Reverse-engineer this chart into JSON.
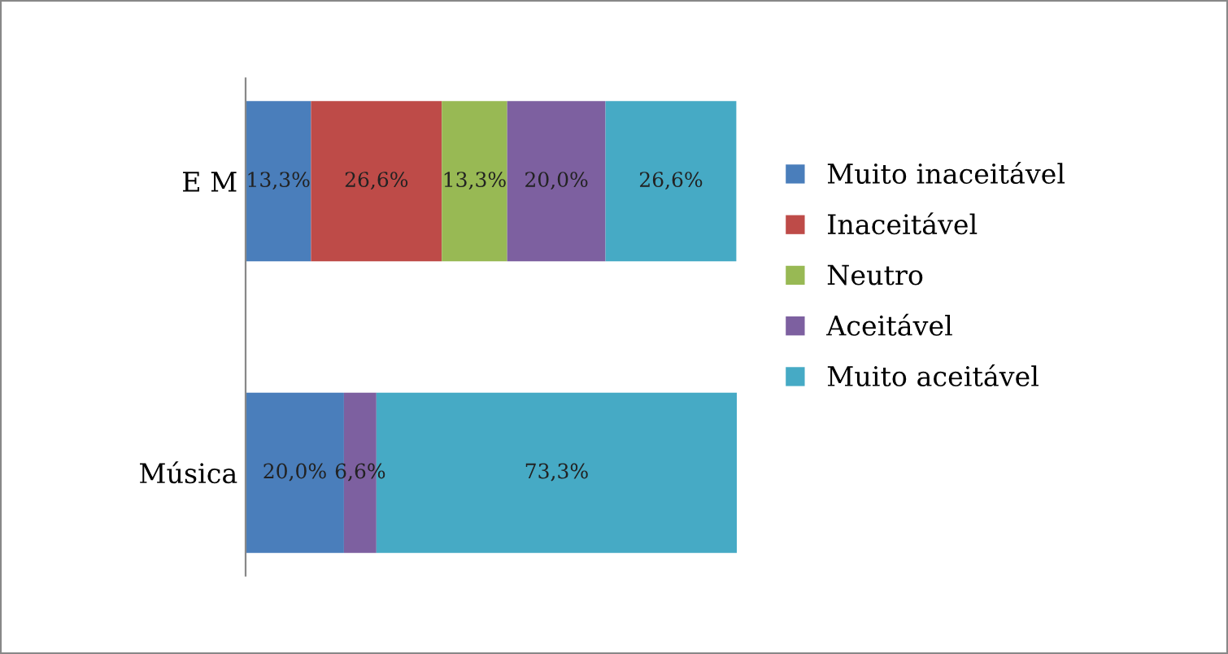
{
  "chart_data": {
    "type": "bar",
    "orientation": "horizontal",
    "stacked": true,
    "categories": [
      "E M",
      "Música"
    ],
    "series": [
      {
        "name": "Muito inaceitável",
        "color": "#4a7ebb",
        "values": [
          13.3,
          20.0
        ],
        "value_labels": [
          "13,3%",
          "20,0%"
        ]
      },
      {
        "name": "Inaceitável",
        "color": "#be4b48",
        "values": [
          26.6,
          null
        ],
        "value_labels": [
          "26,6%",
          null
        ]
      },
      {
        "name": "Neutro",
        "color": "#98b954",
        "values": [
          13.3,
          null
        ],
        "value_labels": [
          "13,3%",
          null
        ]
      },
      {
        "name": "Aceitável",
        "color": "#7d60a0",
        "values": [
          20.0,
          6.6
        ],
        "value_labels": [
          "20,0%",
          "6,6%"
        ]
      },
      {
        "name": "Muito aceitável",
        "color": "#46aac5",
        "values": [
          26.6,
          73.3
        ],
        "value_labels": [
          "26,6%",
          "73,3%"
        ]
      }
    ],
    "legend": "right",
    "tick_labels": "y",
    "grid": false
  }
}
